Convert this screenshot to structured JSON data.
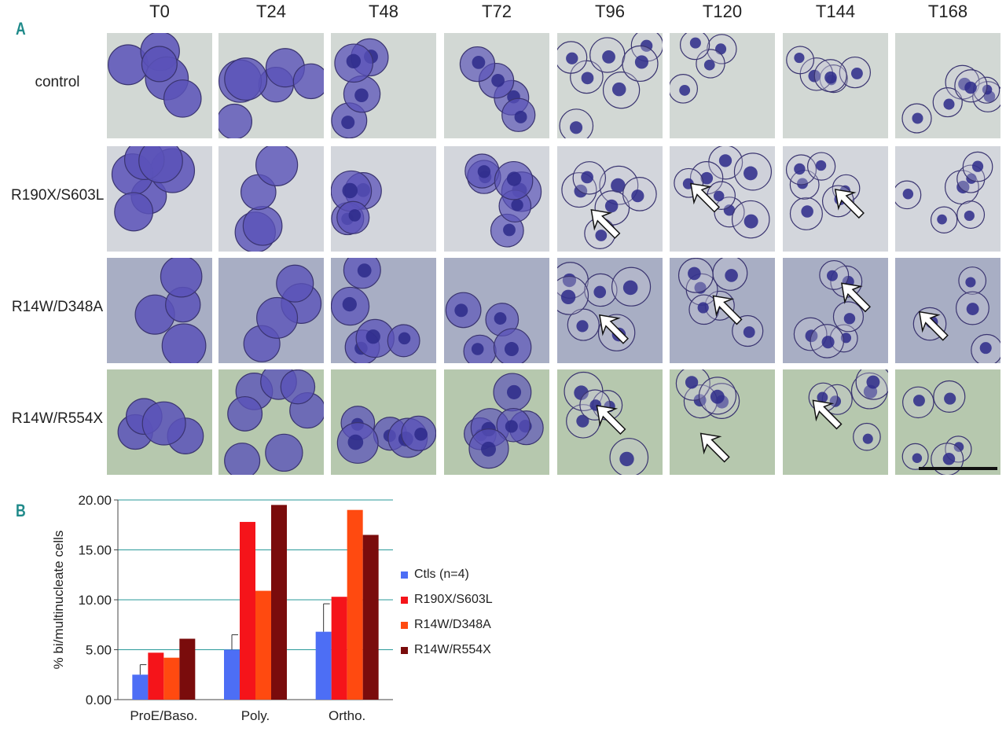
{
  "panels": {
    "a": "A",
    "b": "B"
  },
  "micrograph": {
    "timepoints": [
      "T0",
      "T24",
      "T48",
      "T72",
      "T96",
      "T120",
      "T144",
      "T168"
    ],
    "samples": [
      "control",
      "R190X/S603L",
      "R14W/D348A",
      "R14W/R554X"
    ],
    "row_backgrounds": [
      "#d2d8d4",
      "#d3d6dc",
      "#a8aec4",
      "#b6c8ae"
    ],
    "cell_color": "#5a52b8",
    "nucleus_color": "#2d2a8a",
    "arrow_tiles": [
      [
        1,
        4
      ],
      [
        1,
        5
      ],
      [
        1,
        6
      ],
      [
        2,
        4
      ],
      [
        2,
        5
      ],
      [
        2,
        6
      ],
      [
        2,
        7
      ],
      [
        3,
        4
      ],
      [
        3,
        5
      ],
      [
        3,
        6
      ]
    ]
  },
  "chart_data": {
    "type": "bar",
    "ylabel": "% bi/multinucleate cells",
    "categories": [
      "ProE/Baso.",
      "Poly.",
      "Ortho."
    ],
    "yticks": [
      "0.00",
      "5.00",
      "10.00",
      "15.00",
      "20.00"
    ],
    "ylim": [
      0,
      20
    ],
    "grid": true,
    "legend_position": "right",
    "series": [
      {
        "name": "Ctls (n=4)",
        "values": [
          2.5,
          5.0,
          6.8
        ],
        "error": [
          1.0,
          1.5,
          2.8
        ],
        "color": "#4d6ef5"
      },
      {
        "name": "R190X/S603L",
        "values": [
          4.7,
          17.8,
          10.3
        ],
        "color": "#f5141a"
      },
      {
        "name": "R14W/D348A",
        "values": [
          4.2,
          10.9,
          19.0
        ],
        "color": "#ff4a10"
      },
      {
        "name": "R14W/R554X",
        "values": [
          6.1,
          19.5,
          16.5
        ],
        "color": "#7a0c0c"
      }
    ]
  }
}
